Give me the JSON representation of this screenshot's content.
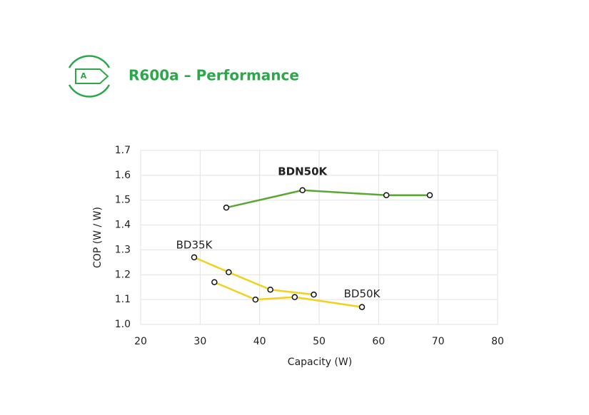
{
  "header": {
    "badge": "A",
    "title": "R600a – Performance"
  },
  "chart_data": {
    "type": "line",
    "x_label": "Capacity (W)",
    "y_label": "COP (W / W)",
    "xlim": [
      20,
      80
    ],
    "xticks": [
      20,
      30,
      40,
      50,
      60,
      70,
      80
    ],
    "ylim": [
      1.0,
      1.7
    ],
    "yticks": [
      {
        "value": 1,
        "label": "1.0"
      },
      1.1,
      1.2,
      1.3,
      1.4,
      1.5,
      1.6,
      1.7
    ],
    "grid": true,
    "series": [
      {
        "name": "BDN50K",
        "color": "#5aa832",
        "x": [
          34.4,
          47.2,
          61.3,
          68.6
        ],
        "values": [
          1.47,
          1.54,
          1.52,
          1.52
        ]
      },
      {
        "name": "BD35K",
        "color": "#f0d21e",
        "x": [
          29.0,
          34.8,
          41.8,
          49.1
        ],
        "values": [
          1.27,
          1.21,
          1.14,
          1.12
        ]
      },
      {
        "name": "BD50K",
        "color": "#f0d21e",
        "x": [
          32.4,
          39.3,
          45.9,
          57.2
        ],
        "values": [
          1.17,
          1.1,
          1.11,
          1.07
        ]
      }
    ]
  }
}
